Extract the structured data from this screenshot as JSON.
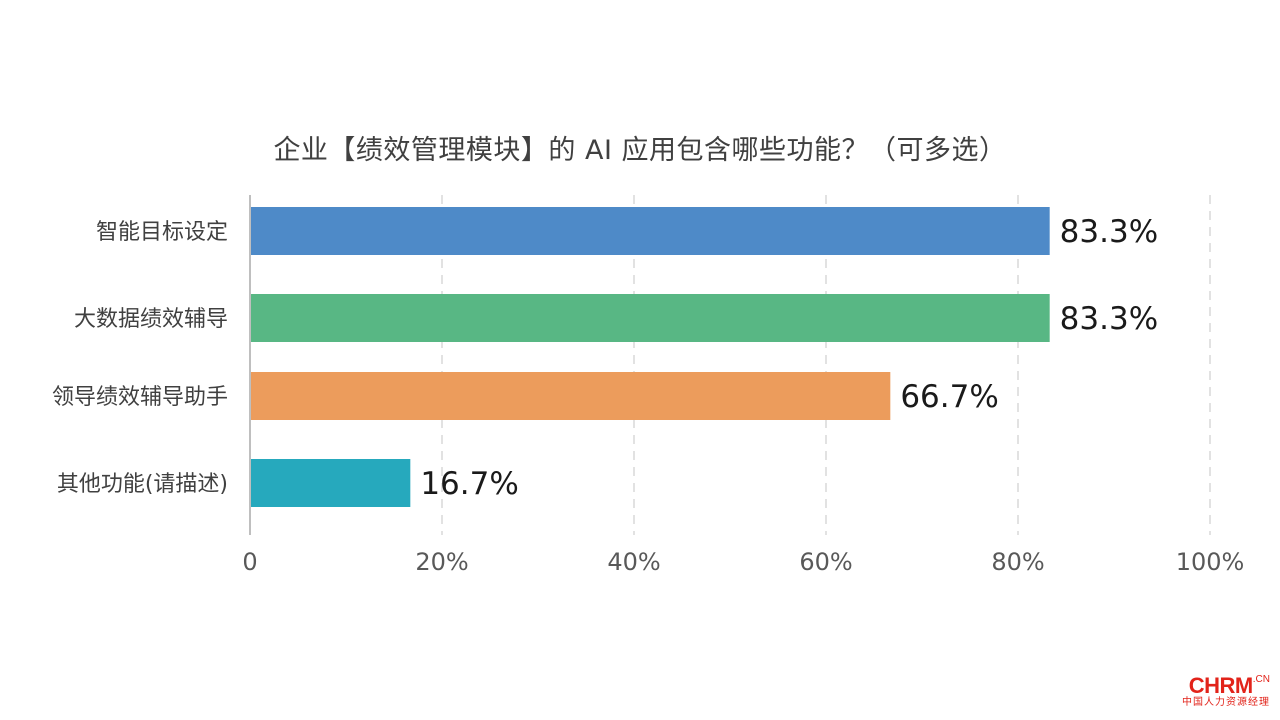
{
  "chart_data": {
    "type": "bar",
    "orientation": "horizontal",
    "title": "企业【绩效管理模块】的 AI 应用包含哪些功能？（可多选）",
    "categories": [
      "智能目标设定",
      "大数据绩效辅导",
      "领导绩效辅导助手",
      "其他功能(请描述)"
    ],
    "values": [
      83.3,
      83.3,
      66.7,
      16.7
    ],
    "data_labels": [
      "83.3%",
      "83.3%",
      "66.7%",
      "16.7%"
    ],
    "colors": [
      "#4e8ac8",
      "#58b784",
      "#ec9c5c",
      "#26a9bd"
    ],
    "xlim": [
      0,
      100
    ],
    "xticks": [
      0,
      20,
      40,
      60,
      80,
      100
    ],
    "xtick_labels": [
      "0",
      "20%",
      "40%",
      "60%",
      "80%",
      "100%"
    ],
    "grid": "vertical-dashed",
    "xlabel": "",
    "ylabel": ""
  },
  "logo": {
    "main": "CHRM",
    "suffix": ".CN",
    "sub": "中国人力资源经理"
  }
}
